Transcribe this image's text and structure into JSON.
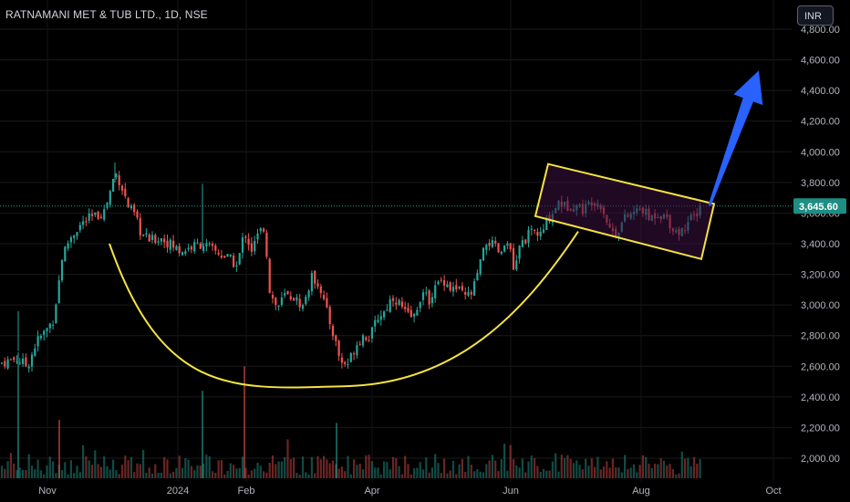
{
  "header": {
    "title": "RATNAMANI MET & TUB LTD., 1D, NSE",
    "currency": "INR"
  },
  "colors": {
    "up": "#26a69a",
    "down": "#ef5350",
    "pattern": "#f5e342",
    "arrow": "#2962ff",
    "channel_fill": "#3a1040",
    "last_price_tag": "#1e8e84"
  },
  "chart_data": {
    "type": "candlestick",
    "title": "RATNAMANI MET & TUB LTD., 1D, NSE",
    "yaxis": {
      "range": [
        1920,
        4820
      ],
      "ticks": [
        2000,
        2200,
        2400,
        2600,
        2800,
        3000,
        3200,
        3400,
        3600,
        3800,
        4000,
        4200,
        4400,
        4600,
        4800
      ],
      "tick_labels": [
        "2,000.00",
        "2,200.00",
        "2,400.00",
        "2,600.00",
        "2,800.00",
        "3,000.00",
        "3,200.00",
        "3,400.00",
        "3,600.00",
        "3,800.00",
        "4,000.00",
        "4,200.00",
        "4,400.00",
        "4,600.00",
        "4,800.00"
      ]
    },
    "xaxis": {
      "ticks": [
        "Nov",
        "2024",
        "Feb",
        "Apr",
        "Jun",
        "Aug",
        "Oct"
      ]
    },
    "last_price": 3645.6,
    "last_price_label": "3,645.60",
    "price_path": [
      [
        0,
        2620
      ],
      [
        18,
        2650
      ],
      [
        30,
        2600
      ],
      [
        40,
        2760
      ],
      [
        50,
        2830
      ],
      [
        58,
        2900
      ],
      [
        63,
        3080
      ],
      [
        68,
        3310
      ],
      [
        76,
        3430
      ],
      [
        86,
        3510
      ],
      [
        96,
        3560
      ],
      [
        106,
        3580
      ],
      [
        114,
        3610
      ],
      [
        120,
        3720
      ],
      [
        126,
        3870
      ],
      [
        132,
        3800
      ],
      [
        140,
        3650
      ],
      [
        148,
        3580
      ],
      [
        155,
        3460
      ],
      [
        165,
        3420
      ],
      [
        176,
        3440
      ],
      [
        186,
        3400
      ],
      [
        198,
        3350
      ],
      [
        210,
        3380
      ],
      [
        222,
        3400
      ],
      [
        233,
        3360
      ],
      [
        242,
        3330
      ],
      [
        252,
        3300
      ],
      [
        260,
        3250
      ],
      [
        268,
        3480
      ],
      [
        276,
        3360
      ],
      [
        284,
        3470
      ],
      [
        290,
        3510
      ],
      [
        296,
        3080
      ],
      [
        304,
        2980
      ],
      [
        312,
        3060
      ],
      [
        322,
        3050
      ],
      [
        332,
        2990
      ],
      [
        342,
        3180
      ],
      [
        350,
        3140
      ],
      [
        358,
        2960
      ],
      [
        366,
        2800
      ],
      [
        374,
        2620
      ],
      [
        382,
        2620
      ],
      [
        390,
        2740
      ],
      [
        398,
        2800
      ],
      [
        406,
        2790
      ],
      [
        414,
        2920
      ],
      [
        422,
        2960
      ],
      [
        430,
        3060
      ],
      [
        438,
        3010
      ],
      [
        446,
        2930
      ],
      [
        454,
        2920
      ],
      [
        462,
        3080
      ],
      [
        470,
        3030
      ],
      [
        478,
        3120
      ],
      [
        486,
        3170
      ],
      [
        494,
        3110
      ],
      [
        502,
        3100
      ],
      [
        510,
        3050
      ],
      [
        518,
        3080
      ],
      [
        526,
        3260
      ],
      [
        534,
        3420
      ],
      [
        542,
        3380
      ],
      [
        550,
        3320
      ],
      [
        556,
        3450
      ],
      [
        564,
        3200
      ],
      [
        570,
        3380
      ],
      [
        578,
        3450
      ],
      [
        586,
        3480
      ],
      [
        594,
        3450
      ],
      [
        600,
        3560
      ],
      [
        606,
        3600
      ],
      [
        612,
        3680
      ],
      [
        620,
        3640
      ],
      [
        630,
        3660
      ],
      [
        640,
        3620
      ],
      [
        650,
        3690
      ],
      [
        660,
        3650
      ],
      [
        668,
        3500
      ],
      [
        676,
        3470
      ],
      [
        684,
        3560
      ],
      [
        694,
        3600
      ],
      [
        704,
        3630
      ],
      [
        712,
        3560
      ],
      [
        720,
        3600
      ],
      [
        730,
        3580
      ],
      [
        738,
        3500
      ],
      [
        746,
        3470
      ],
      [
        754,
        3540
      ],
      [
        762,
        3580
      ],
      [
        768,
        3645
      ]
    ],
    "volume_spikes": [
      [
        20,
        2690
      ],
      [
        65,
        2250
      ],
      [
        222,
        2440
      ],
      [
        268,
        2600
      ],
      [
        369,
        2230
      ]
    ],
    "annotations": {
      "cup": {
        "start": [
          120,
          3400
        ],
        "bottom": [
          380,
          2470
        ],
        "end": [
          634,
          3480
        ]
      },
      "channel": {
        "corners": [
          [
            601,
            3920
          ],
          [
            783,
            3660
          ],
          [
            769,
            3300
          ],
          [
            587,
            3580
          ]
        ]
      },
      "arrow": {
        "from": [
          778,
          3650
        ],
        "to": [
          832,
          4530
        ]
      }
    }
  }
}
